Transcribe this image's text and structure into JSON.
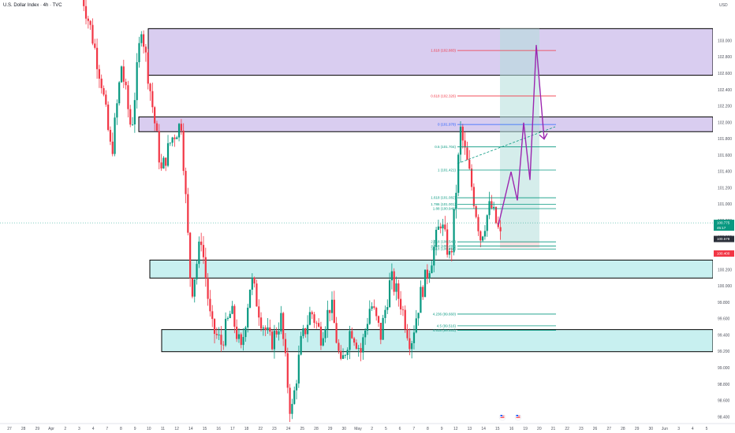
{
  "header": {
    "title": "U.S. Dollar Index · 4h · TVC"
  },
  "colors": {
    "up": "#089981",
    "down": "#f23645",
    "supply_zone": "#d9cdf0",
    "demand_zone": "#c8f0f0",
    "target_box": "#b2dfdb",
    "stop_box": "#f8d7da",
    "projection": "#9c27b0",
    "fib_teal": "#089981",
    "fib_blue": "#2962ff",
    "fib_red": "#f23645",
    "price_tag": "#f23645",
    "tag_ask": "#2a2e39"
  },
  "chart_data": {
    "type": "candlestick",
    "title": "U.S. Dollar Index · 4h · TVC",
    "ylim": [
      98.35,
      103.5
    ],
    "y_axis": {
      "unit_label": "USD",
      "ticks": [
        "103.000",
        "102.800",
        "102.600",
        "102.400",
        "102.200",
        "102.000",
        "101.800",
        "101.600",
        "101.400",
        "101.200",
        "101.000",
        "100.800",
        "100.600",
        "100.400",
        "100.200",
        "100.000",
        "99.800",
        "99.600",
        "99.400",
        "99.200",
        "99.000",
        "98.800",
        "98.600",
        "98.400"
      ]
    },
    "x_axis": {
      "ticks": [
        "27",
        "28",
        "29",
        "Apr",
        "2",
        "3",
        "4",
        "7",
        "8",
        "9",
        "10",
        "11",
        "12",
        "14",
        "15",
        "16",
        "17",
        "18",
        "22",
        "23",
        "24",
        "25",
        "28",
        "29",
        "30",
        "May",
        "2",
        "5",
        "6",
        "7",
        "8",
        "9",
        "12",
        "13",
        "14",
        "15",
        "16",
        "19",
        "20",
        "21",
        "22",
        "23",
        "26",
        "27",
        "28",
        "29",
        "30",
        "Jun",
        "3",
        "4",
        "5"
      ]
    },
    "price_path": [
      103.6,
      103.1,
      102.5,
      101.6,
      102.7,
      101.9,
      103.2,
      102.3,
      101.4,
      101.8,
      102.0,
      99.9,
      100.6,
      99.5,
      99.3,
      99.7,
      99.2,
      100.1,
      99.6,
      99.3,
      99.6,
      98.4,
      99.3,
      99.7,
      99.4,
      99.8,
      99.0,
      99.5,
      99.2,
      99.8,
      99.4,
      100.1,
      99.8,
      99.3,
      99.9,
      100.3,
      100.8,
      100.3,
      101.9,
      101.3,
      100.6,
      101.0,
      100.6
    ],
    "current_price": "100.775",
    "countdown": "45:17",
    "bid_label": "100.578",
    "ask_label": "100.400",
    "zones": [
      {
        "type": "supply",
        "low": 102.58,
        "high": 103.15
      },
      {
        "type": "supply",
        "low": 101.89,
        "high": 102.07
      },
      {
        "type": "demand",
        "low": 100.1,
        "high": 100.32
      },
      {
        "type": "demand",
        "low": 99.2,
        "high": 99.47
      }
    ],
    "fib_levels": [
      {
        "label": "1.618 (102.883)",
        "value": 102.883,
        "color": "red"
      },
      {
        "label": "0.618 (102.326)",
        "value": 102.326,
        "color": "red"
      },
      {
        "label": "0 (101.978)",
        "value": 101.978,
        "color": "blue"
      },
      {
        "label": "0.5 (101.704)",
        "value": 101.704,
        "color": "teal"
      },
      {
        "label": "1 (101.421)",
        "value": 101.421,
        "color": "teal"
      },
      {
        "label": "1.618 (101.082)",
        "value": 101.082,
        "color": "teal"
      },
      {
        "label": "1.786 (101.001)",
        "value": 101.001,
        "color": "teal"
      },
      {
        "label": "1.88 (100.949)",
        "value": 100.949,
        "color": "teal"
      },
      {
        "label": "2.618 (100.543)",
        "value": 100.543,
        "color": "teal"
      },
      {
        "label": "3.618 (100.491)",
        "value": 100.491,
        "color": "teal"
      },
      {
        "label": "3.618 (100.456)",
        "value": 100.456,
        "color": "teal"
      },
      {
        "label": "4.236 (99.660)",
        "value": 99.66,
        "color": "teal"
      },
      {
        "label": "4.5 (99.516)",
        "value": 99.516,
        "color": "teal"
      },
      {
        "label": "4.618 (99.461)",
        "value": 99.461,
        "color": "teal"
      }
    ],
    "projection_path": [
      100.75,
      101.4,
      101.05,
      102.0,
      101.3,
      102.95,
      101.8
    ],
    "projection_arrow": {
      "from": 101.5,
      "to": 101.95
    }
  }
}
